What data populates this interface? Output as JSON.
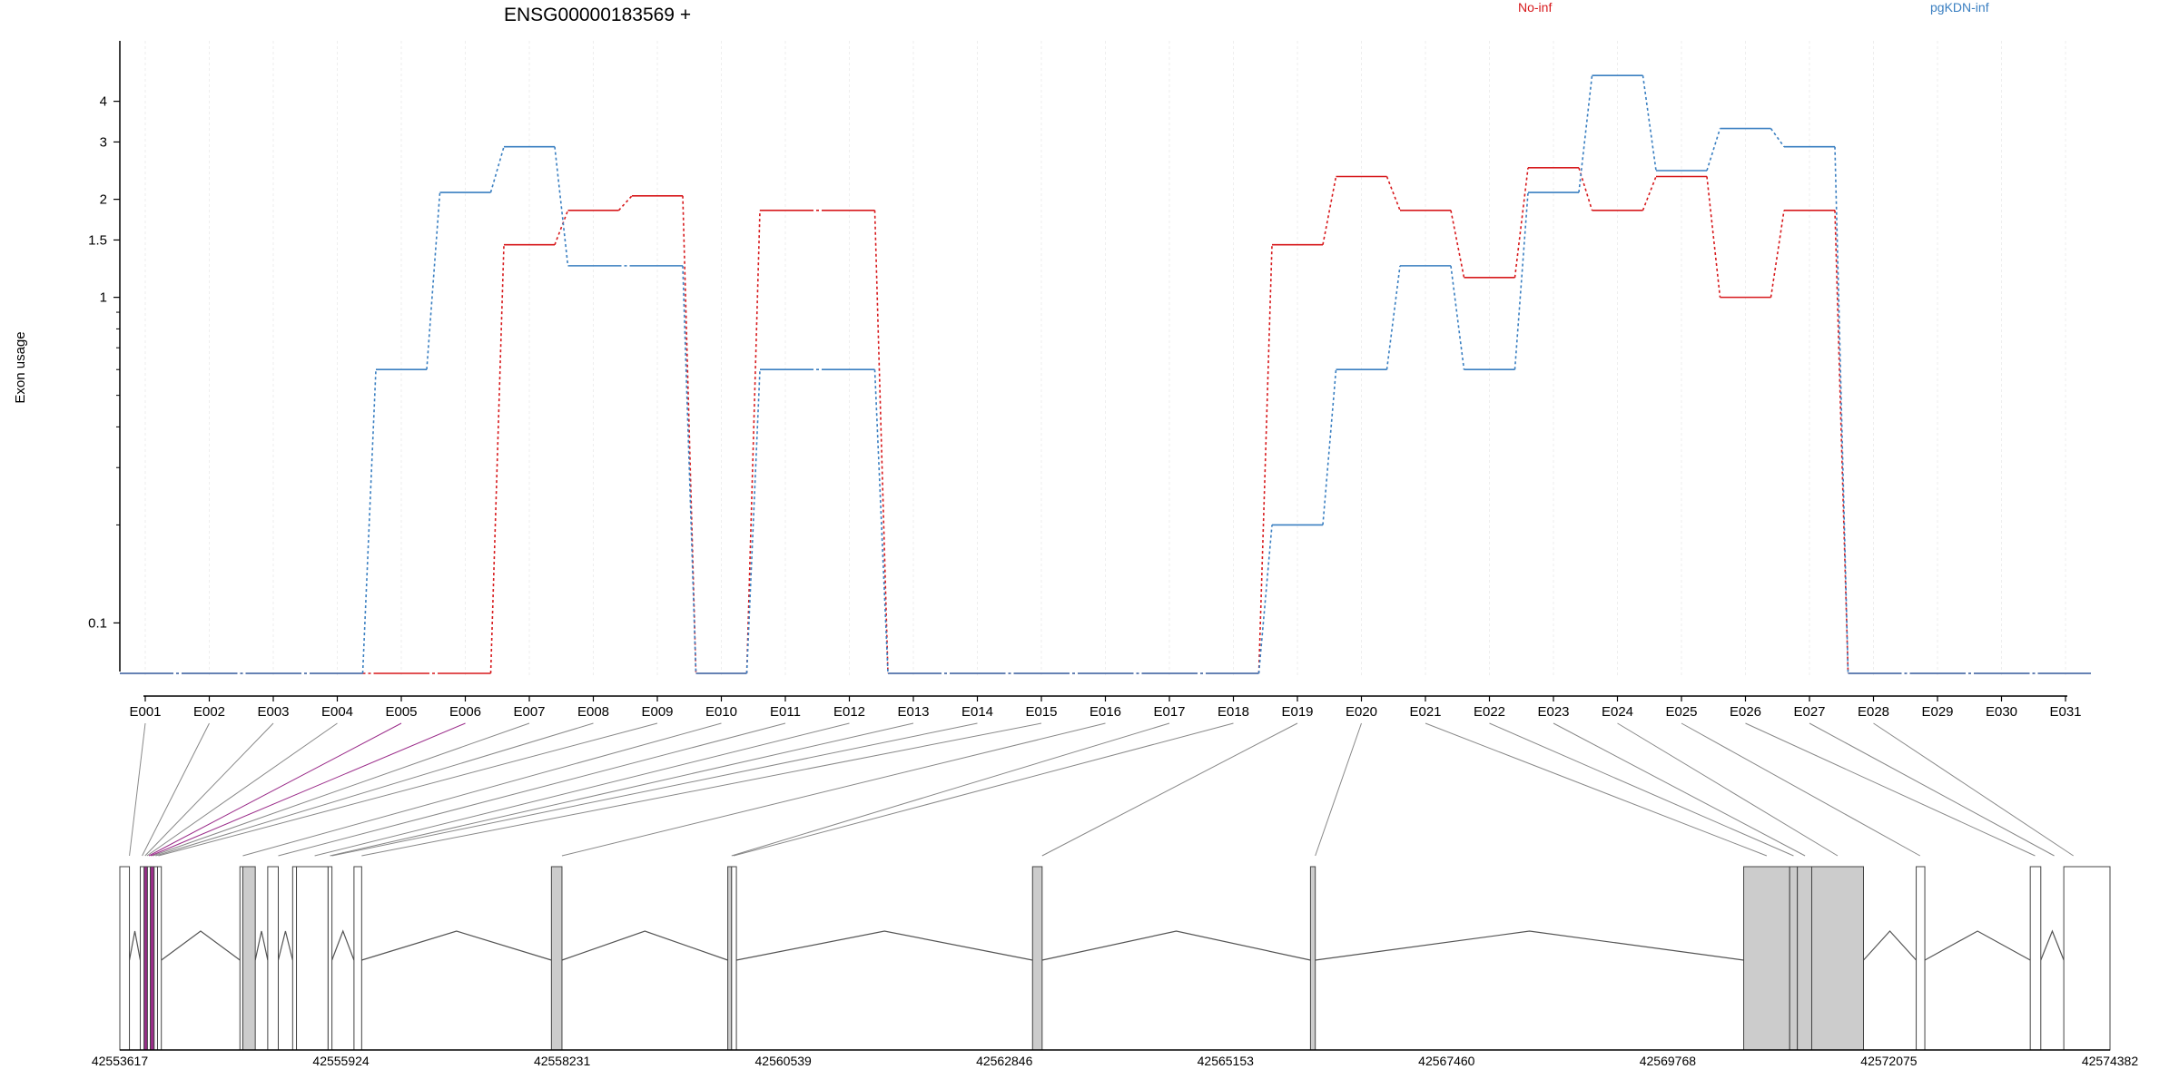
{
  "chart_data": {
    "type": "line",
    "title": "ENSG00000183569 +",
    "ylabel": "Exon usage",
    "xlabel": "",
    "y_scale": "log",
    "ylim": [
      0.07,
      5.5
    ],
    "y_ticks": [
      0.1,
      1,
      1.5,
      2,
      3,
      4
    ],
    "y_tick_labels": [
      "0.1",
      "1",
      "1.5",
      "2",
      "3",
      "4"
    ],
    "legend_placement": "top-right",
    "grid": false,
    "categories": [
      "E001",
      "E002",
      "E003",
      "E004",
      "E005",
      "E006",
      "E007",
      "E008",
      "E009",
      "E010",
      "E011",
      "E012",
      "E013",
      "E014",
      "E015",
      "E016",
      "E017",
      "E018",
      "E019",
      "E020",
      "E021",
      "E022",
      "E023",
      "E024",
      "E025",
      "E026",
      "E027",
      "E028",
      "E029",
      "E030",
      "E031"
    ],
    "series": [
      {
        "name": "No-inf",
        "color": "#d7191c",
        "values": [
          0.07,
          0.07,
          0.07,
          0.07,
          0.07,
          0.07,
          1.45,
          1.85,
          2.05,
          0.07,
          1.85,
          1.85,
          0.07,
          0.07,
          0.07,
          0.07,
          0.07,
          0.07,
          1.45,
          2.35,
          1.85,
          1.15,
          2.5,
          1.85,
          2.35,
          1.0,
          1.85,
          0.07,
          0.07,
          0.07,
          0.07
        ]
      },
      {
        "name": "pgKDN-inf",
        "color": "#3a7fc1",
        "values": [
          0.07,
          0.07,
          0.07,
          0.07,
          0.6,
          2.1,
          2.9,
          1.25,
          1.25,
          0.07,
          0.6,
          0.6,
          0.07,
          0.07,
          0.07,
          0.07,
          0.07,
          0.07,
          0.2,
          0.6,
          1.25,
          0.6,
          2.1,
          4.8,
          2.45,
          3.3,
          2.9,
          0.07,
          0.07,
          0.07,
          0.07
        ]
      }
    ],
    "gene_model": {
      "coordinate_labels": [
        "42553617",
        "42555924",
        "42558231",
        "42560539",
        "42562846",
        "42565153",
        "42567460",
        "42569768",
        "42572075",
        "42574382"
      ],
      "start": 42553617,
      "end": 42574382,
      "exon_fill_colors": {
        "significant": "#cccccc",
        "normal": "#ffffff",
        "highlight": "#9b2d8a"
      },
      "exons": [
        {
          "start": 42553617,
          "end": 42553717,
          "fill": "normal"
        },
        {
          "start": 42553830,
          "end": 42553870,
          "fill": "normal"
        },
        {
          "start": 42553870,
          "end": 42553905,
          "fill": "highlight"
        },
        {
          "start": 42553905,
          "end": 42553935,
          "fill": "normal"
        },
        {
          "start": 42553935,
          "end": 42553975,
          "fill": "highlight"
        },
        {
          "start": 42553975,
          "end": 42554010,
          "fill": "normal"
        },
        {
          "start": 42554010,
          "end": 42554050,
          "fill": "normal"
        },
        {
          "start": 42554870,
          "end": 42554900,
          "fill": "normal"
        },
        {
          "start": 42554900,
          "end": 42555030,
          "fill": "significant"
        },
        {
          "start": 42555160,
          "end": 42555270,
          "fill": "normal"
        },
        {
          "start": 42555420,
          "end": 42555460,
          "fill": "normal"
        },
        {
          "start": 42555460,
          "end": 42555790,
          "fill": "normal"
        },
        {
          "start": 42555790,
          "end": 42555830,
          "fill": "normal"
        },
        {
          "start": 42556060,
          "end": 42556140,
          "fill": "normal"
        },
        {
          "start": 42558120,
          "end": 42558230,
          "fill": "significant"
        },
        {
          "start": 42559960,
          "end": 42560000,
          "fill": "significant"
        },
        {
          "start": 42560000,
          "end": 42560050,
          "fill": "normal"
        },
        {
          "start": 42563140,
          "end": 42563240,
          "fill": "significant"
        },
        {
          "start": 42566040,
          "end": 42566090,
          "fill": "significant"
        },
        {
          "start": 42570560,
          "end": 42571040,
          "fill": "significant"
        },
        {
          "start": 42571040,
          "end": 42571120,
          "fill": "significant"
        },
        {
          "start": 42571120,
          "end": 42571270,
          "fill": "significant"
        },
        {
          "start": 42571270,
          "end": 42571810,
          "fill": "significant"
        },
        {
          "start": 42572360,
          "end": 42572450,
          "fill": "normal"
        },
        {
          "start": 42573550,
          "end": 42573660,
          "fill": "normal"
        },
        {
          "start": 42573900,
          "end": 42574382,
          "fill": "normal"
        }
      ],
      "exon_bin_link_positions": [
        42553717,
        42553850,
        42553880,
        42553900,
        42553920,
        42553940,
        42553960,
        42553990,
        42554020,
        42554900,
        42555270,
        42555650,
        42555810,
        42555830,
        42556140,
        42558230,
        42560000,
        42560020,
        42563240,
        42566090,
        42570800,
        42571080,
        42571200,
        42571540,
        42572400,
        42573600,
        42573800,
        42574000
      ]
    }
  }
}
